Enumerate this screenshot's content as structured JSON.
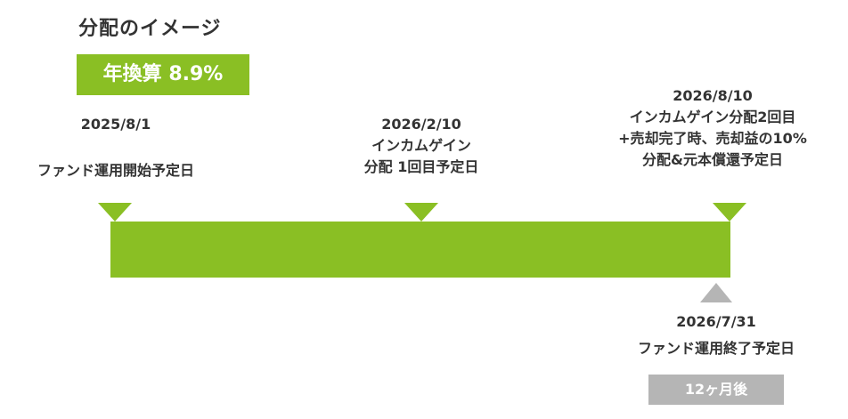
{
  "heading": "分配のイメージ",
  "rate_badge": "年換算 8.9%",
  "milestones": {
    "start": {
      "date": "2025/8/1",
      "line1": "ファンド運用開始予定日"
    },
    "first": {
      "date": "2026/2/10",
      "line1": "インカムゲイン",
      "line2": "分配 1回目予定日"
    },
    "second": {
      "date": "2026/8/10",
      "line1": "インカムゲイン分配2回目",
      "line2": "+売却完了時、売却益の10%",
      "line3": "分配&元本償還予定日"
    },
    "end": {
      "date": "2026/7/31",
      "line1": "ファンド運用終了予定日"
    }
  },
  "period_badge": "12ヶ月後",
  "colors": {
    "green": "#8abf24",
    "gray": "#b5b5b5",
    "text": "#333333"
  }
}
